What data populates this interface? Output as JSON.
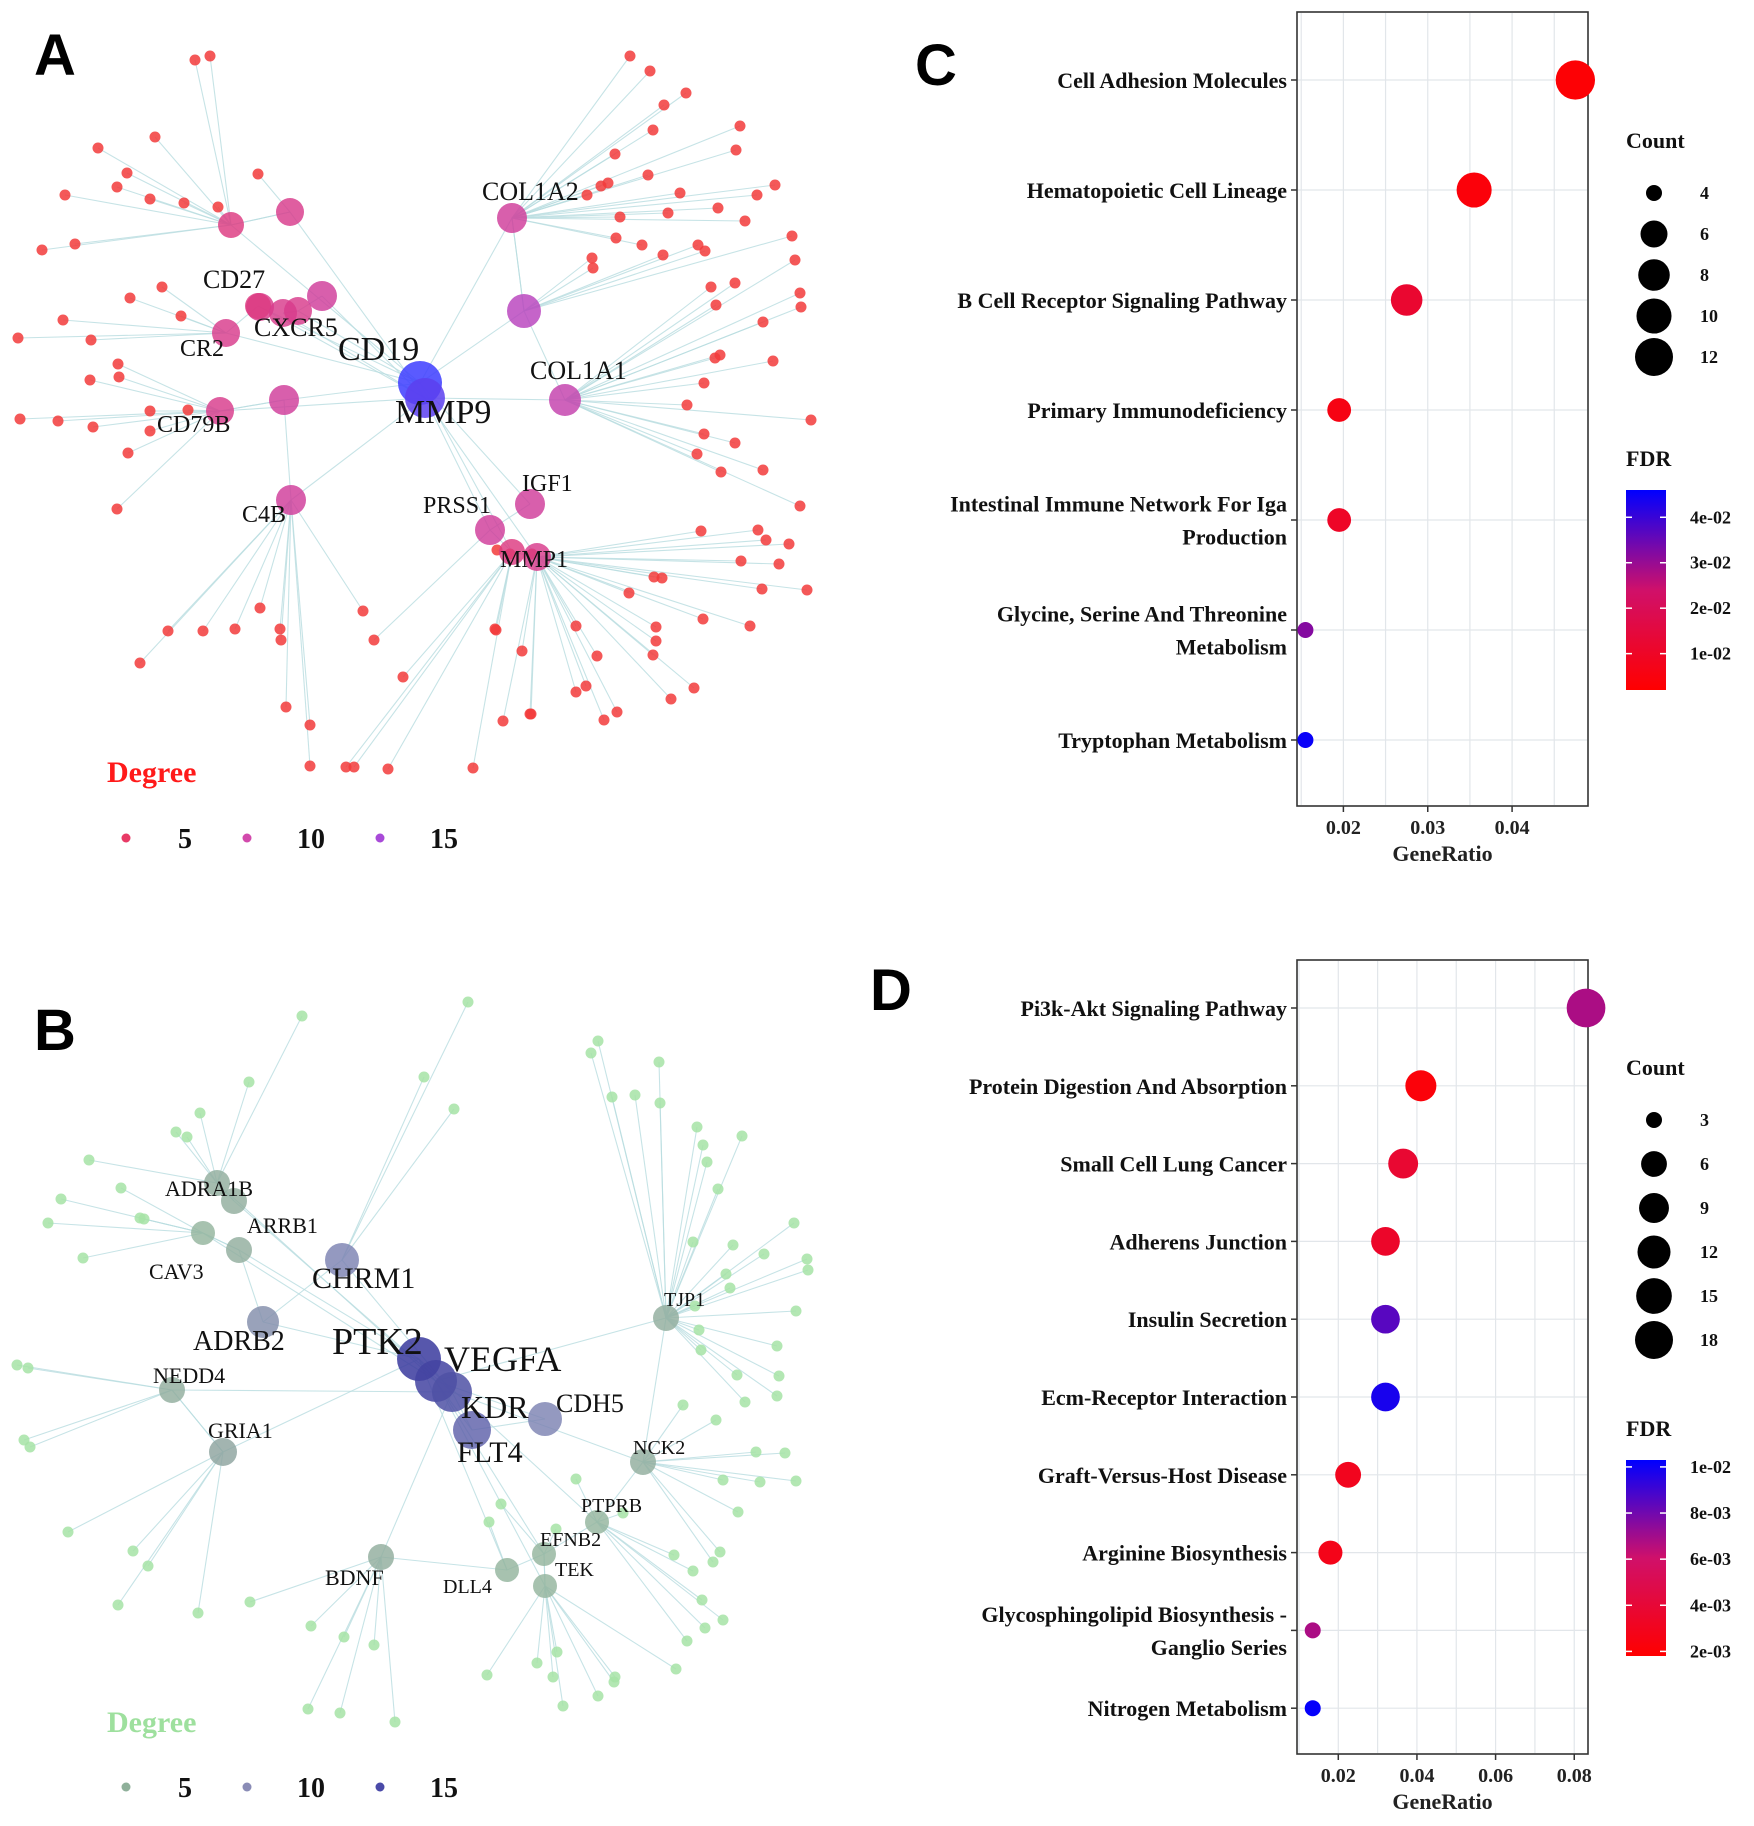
{
  "panels": {
    "A": {
      "letter": "A"
    },
    "B": {
      "letter": "B"
    },
    "C": {
      "letter": "C"
    },
    "D": {
      "letter": "D"
    }
  },
  "colors": {
    "network_A_low": "#ff1a1a",
    "network_A_high": "#3d3dff",
    "network_B_low": "#9ee09e",
    "network_B_high": "#3a3a9e",
    "edge": "#b9dde0",
    "fdr_low": "#ff0000",
    "fdr_high": "#0000ff"
  },
  "network_A": {
    "degree_legend": {
      "title": "Degree",
      "values": [
        "5",
        "10",
        "15"
      ]
    },
    "labels": [
      "CD19",
      "MMP9",
      "COL1A2",
      "CD27",
      "CXCR5",
      "CR2",
      "CD79B",
      "COL1A1",
      "IGF1",
      "PRSS1",
      "MMP1",
      "C4B"
    ]
  },
  "network_B": {
    "degree_legend": {
      "title": "Degree",
      "values": [
        "5",
        "10",
        "15"
      ]
    },
    "labels": [
      "PTK2",
      "VEGFA",
      "KDR",
      "FLT4",
      "CDH5",
      "CHRM1",
      "ADRB2",
      "ADRA1B",
      "ARRB1",
      "CAV3",
      "NEDD4",
      "GRIA1",
      "TJP1",
      "NCK2",
      "PTPRB",
      "EFNB2",
      "TEK",
      "DLL4",
      "BDNF"
    ]
  },
  "chart_data": [
    {
      "panel": "C",
      "type": "scatter",
      "title": "",
      "xlabel": "GeneRatio",
      "ylabel": "",
      "xlim": [
        0.0145,
        0.049
      ],
      "xticks": [
        0.02,
        0.03,
        0.04
      ],
      "xtick_labels": [
        "0.02",
        "0.03",
        "0.04"
      ],
      "grid": true,
      "terms": [
        {
          "lines": [
            "Cell Adhesion Molecules"
          ],
          "generatio": 0.0475,
          "count": 13,
          "fdr": 0.003
        },
        {
          "lines": [
            "Hematopoietic Cell Lineage"
          ],
          "generatio": 0.0355,
          "count": 10,
          "fdr": 0.004
        },
        {
          "lines": [
            "B Cell Receptor Signaling Pathway"
          ],
          "generatio": 0.0275,
          "count": 8,
          "fdr": 0.012
        },
        {
          "lines": [
            "Primary Immunodeficiency"
          ],
          "generatio": 0.0195,
          "count": 5,
          "fdr": 0.006
        },
        {
          "lines": [
            "Intestinal Immune Network For Iga",
            "Production"
          ],
          "generatio": 0.0195,
          "count": 5,
          "fdr": 0.01
        },
        {
          "lines": [
            "Glycine, Serine And Threonine",
            "Metabolism"
          ],
          "generatio": 0.0155,
          "count": 4,
          "fdr": 0.032
        },
        {
          "lines": [
            "Tryptophan Metabolism"
          ],
          "generatio": 0.0155,
          "count": 4,
          "fdr": 0.045
        }
      ],
      "size_legend": {
        "title": "Count",
        "values": [
          4,
          6,
          8,
          10,
          12
        ]
      },
      "color_legend": {
        "title": "FDR",
        "range": [
          0.002,
          0.046
        ],
        "ticks": [
          0.04,
          0.03,
          0.02,
          0.01
        ],
        "tick_labels": [
          "4e-02",
          "3e-02",
          "2e-02",
          "1e-02"
        ]
      }
    },
    {
      "panel": "D",
      "type": "scatter",
      "title": "",
      "xlabel": "GeneRatio",
      "ylabel": "",
      "xlim": [
        0.0095,
        0.0835
      ],
      "xticks": [
        0.02,
        0.04,
        0.06,
        0.08
      ],
      "xtick_labels": [
        "0.02",
        "0.04",
        "0.06",
        "0.08"
      ],
      "grid": true,
      "terms": [
        {
          "lines": [
            "Pi3k-Akt Signaling Pathway"
          ],
          "generatio": 0.083,
          "count": 19,
          "fdr": 0.0068
        },
        {
          "lines": [
            "Protein Digestion And Absorption"
          ],
          "generatio": 0.041,
          "count": 10,
          "fdr": 0.0022
        },
        {
          "lines": [
            "Small Cell Lung Cancer"
          ],
          "generatio": 0.0365,
          "count": 9,
          "fdr": 0.0038
        },
        {
          "lines": [
            "Adherens Junction"
          ],
          "generatio": 0.032,
          "count": 8,
          "fdr": 0.0035
        },
        {
          "lines": [
            "Insulin Secretion"
          ],
          "generatio": 0.032,
          "count": 8,
          "fdr": 0.0085
        },
        {
          "lines": [
            "Ecm-Receptor Interaction"
          ],
          "generatio": 0.032,
          "count": 8,
          "fdr": 0.0098
        },
        {
          "lines": [
            "Graft-Versus-Host Disease"
          ],
          "generatio": 0.0225,
          "count": 6,
          "fdr": 0.003
        },
        {
          "lines": [
            "Arginine Biosynthesis"
          ],
          "generatio": 0.018,
          "count": 5,
          "fdr": 0.0028
        },
        {
          "lines": [
            "Glycosphingolipid Biosynthesis -",
            "Ganglio Series"
          ],
          "generatio": 0.0135,
          "count": 3,
          "fdr": 0.0068
        },
        {
          "lines": [
            "Nitrogen Metabolism"
          ],
          "generatio": 0.0135,
          "count": 3,
          "fdr": 0.0102
        }
      ],
      "size_legend": {
        "title": "Count",
        "values": [
          3,
          6,
          9,
          12,
          15,
          18
        ]
      },
      "color_legend": {
        "title": "FDR",
        "range": [
          0.0018,
          0.0103
        ],
        "ticks": [
          0.01,
          0.008,
          0.006,
          0.004,
          0.002
        ],
        "tick_labels": [
          "1e-02",
          "8e-03",
          "6e-03",
          "4e-03",
          "2e-03"
        ]
      }
    }
  ]
}
